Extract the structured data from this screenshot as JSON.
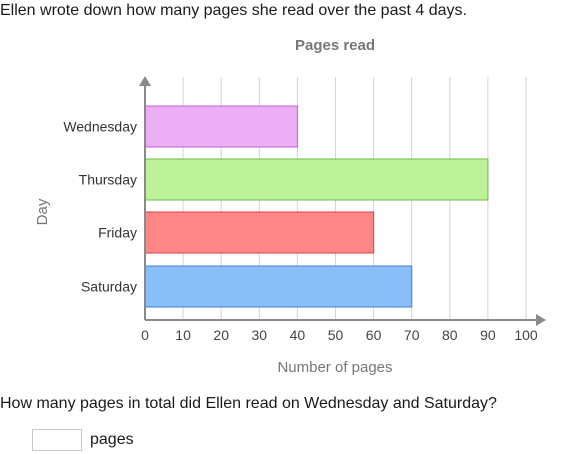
{
  "prompt": "Ellen wrote down how many pages she read over the past 4 days.",
  "question": "How many pages in total did Ellen read on Wednesday and Saturday?",
  "answer": {
    "value": "",
    "unit": "pages"
  },
  "chart_data": {
    "type": "bar",
    "orientation": "horizontal",
    "title": "Pages read",
    "xlabel": "Number of pages",
    "ylabel": "Day",
    "categories": [
      "Wednesday",
      "Thursday",
      "Friday",
      "Saturday"
    ],
    "values": [
      40,
      90,
      60,
      70
    ],
    "colors": [
      "#ecaef4",
      "#bdf29a",
      "#ff8787",
      "#88bff9"
    ],
    "stroke_colors": [
      "#c25fd0",
      "#6cbd45",
      "#dd4040",
      "#3f7fd8"
    ],
    "xlim": [
      0,
      100
    ],
    "xticks": [
      0,
      10,
      20,
      30,
      40,
      50,
      60,
      70,
      80,
      90,
      100
    ],
    "grid": "vertical"
  }
}
